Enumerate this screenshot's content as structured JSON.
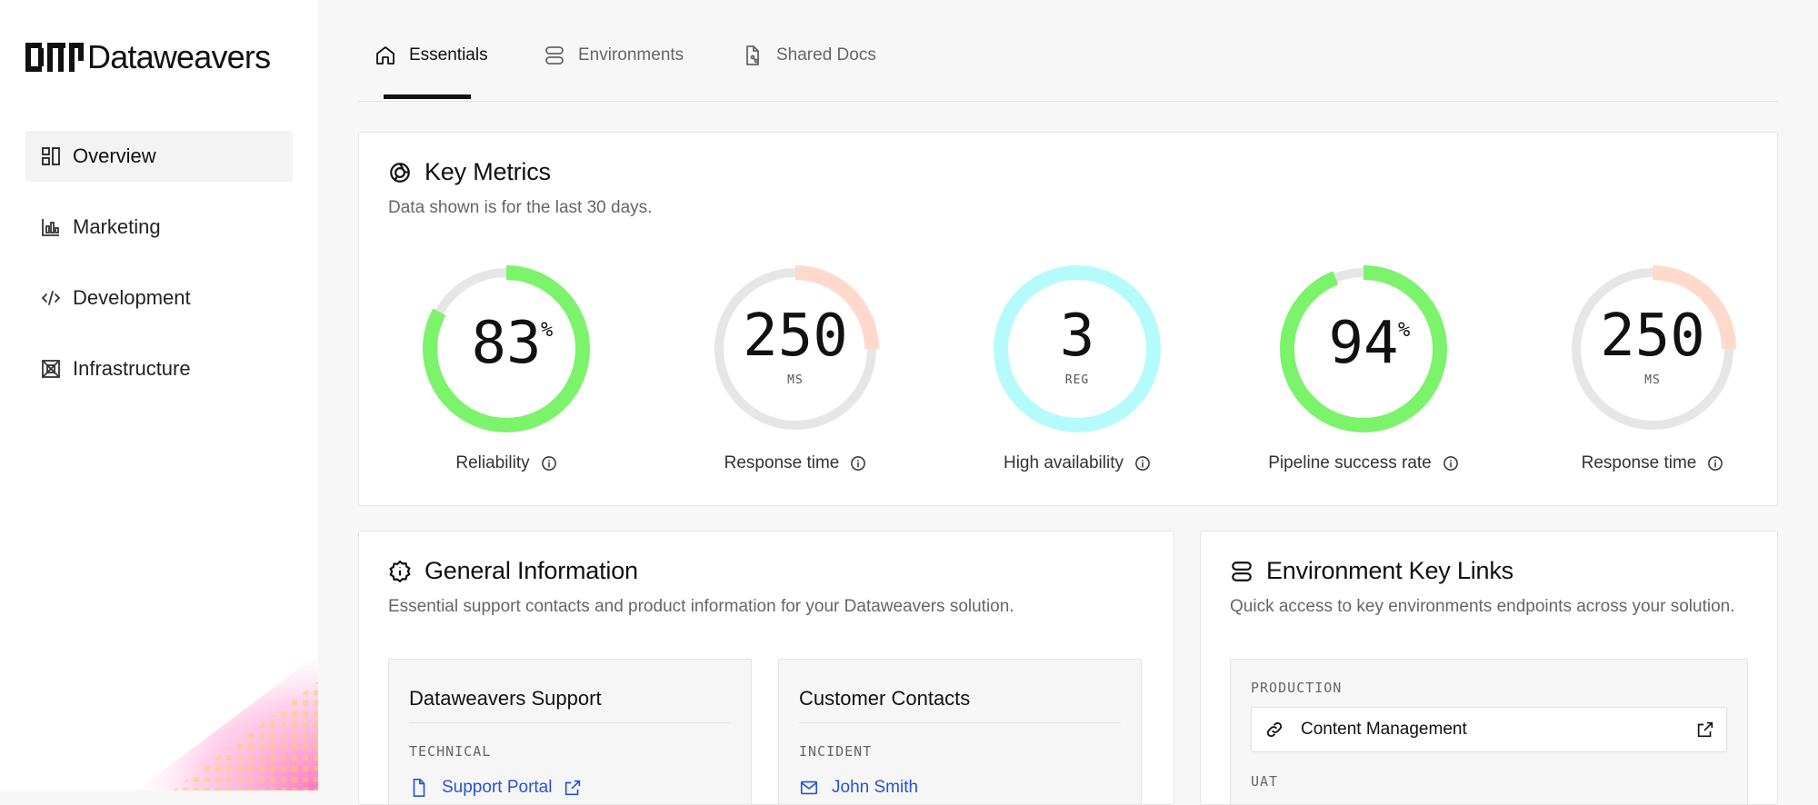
{
  "brand": {
    "name": "Dataweavers",
    "logo_icon": "dataweavers-logo"
  },
  "sidebar": {
    "items": [
      {
        "label": "Overview",
        "icon": "dashboard-layout-icon",
        "active": true
      },
      {
        "label": "Marketing",
        "icon": "bar-chart-icon",
        "active": false
      },
      {
        "label": "Development",
        "icon": "code-icon",
        "active": false
      },
      {
        "label": "Infrastructure",
        "icon": "server-box-icon",
        "active": false
      }
    ]
  },
  "tabs": [
    {
      "label": "Essentials",
      "icon": "home-icon",
      "active": true
    },
    {
      "label": "Environments",
      "icon": "server-stack-icon",
      "active": false
    },
    {
      "label": "Shared Docs",
      "icon": "shared-document-icon",
      "active": false
    }
  ],
  "key_metrics": {
    "title": "Key Metrics",
    "subtitle": "Data shown is for the last 30 days.",
    "items": [
      {
        "value": "83",
        "unit": "%",
        "unit_style": "superscript",
        "label": "Reliability",
        "fill": 0.83,
        "color": "#7bf36a"
      },
      {
        "value": "250",
        "unit": "MS",
        "unit_style": "below",
        "label": "Response time",
        "fill": 0.25,
        "color": "#ffd9cc"
      },
      {
        "value": "3",
        "unit": "REG",
        "unit_style": "below",
        "label": "High availability",
        "fill": 1.0,
        "color": "#b5fbfb"
      },
      {
        "value": "94",
        "unit": "%",
        "unit_style": "superscript",
        "label": "Pipeline success rate",
        "fill": 0.94,
        "color": "#7bf36a"
      },
      {
        "value": "250",
        "unit": "MS",
        "unit_style": "below",
        "label": "Response time",
        "fill": 0.25,
        "color": "#ffd9cc"
      }
    ]
  },
  "general_info": {
    "title": "General Information",
    "subtitle": "Essential support contacts and product information for your Dataweavers solution.",
    "support": {
      "title": "Dataweavers Support",
      "section_label": "TECHNICAL",
      "link_label": "Support Portal"
    },
    "contacts": {
      "title": "Customer Contacts",
      "section_label": "INCIDENT",
      "link_label": "John Smith"
    }
  },
  "env_links": {
    "title": "Environment Key Links",
    "subtitle": "Quick access to key environments endpoints across your solution.",
    "production_label": "PRODUCTION",
    "production_link": "Content Management",
    "uat_label": "UAT"
  }
}
